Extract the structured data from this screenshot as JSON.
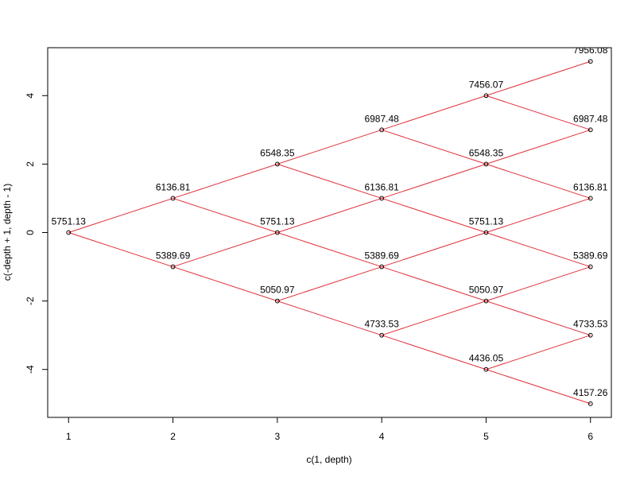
{
  "chart_data": {
    "type": "line",
    "title": "",
    "xlabel": "c(1, depth)",
    "ylabel": "c(-depth + 1, depth - 1)",
    "xlim": [
      0.8,
      6.2
    ],
    "ylim": [
      -5.4,
      5.4
    ],
    "x_ticks": [
      1,
      2,
      3,
      4,
      5,
      6
    ],
    "y_ticks": [
      -4,
      -2,
      0,
      2,
      4
    ],
    "grid": false,
    "line_color": "#e0303a",
    "nodes": [
      {
        "x": 1,
        "y": 0,
        "label": "5751.13"
      },
      {
        "x": 2,
        "y": 1,
        "label": "6136.81"
      },
      {
        "x": 2,
        "y": -1,
        "label": "5389.69"
      },
      {
        "x": 3,
        "y": 2,
        "label": "6548.35"
      },
      {
        "x": 3,
        "y": 0,
        "label": "5751.13"
      },
      {
        "x": 3,
        "y": -2,
        "label": "5050.97"
      },
      {
        "x": 4,
        "y": 3,
        "label": "6987.48"
      },
      {
        "x": 4,
        "y": 1,
        "label": "6136.81"
      },
      {
        "x": 4,
        "y": -1,
        "label": "5389.69"
      },
      {
        "x": 4,
        "y": -3,
        "label": "4733.53"
      },
      {
        "x": 5,
        "y": 4,
        "label": "7456.07"
      },
      {
        "x": 5,
        "y": 2,
        "label": "6548.35"
      },
      {
        "x": 5,
        "y": 0,
        "label": "5751.13"
      },
      {
        "x": 5,
        "y": -2,
        "label": "5050.97"
      },
      {
        "x": 5,
        "y": -4,
        "label": "4436.05"
      },
      {
        "x": 6,
        "y": 5,
        "label": "7956.08"
      },
      {
        "x": 6,
        "y": 3,
        "label": "6987.48"
      },
      {
        "x": 6,
        "y": 1,
        "label": "6136.81"
      },
      {
        "x": 6,
        "y": -1,
        "label": "5389.69"
      },
      {
        "x": 6,
        "y": -3,
        "label": "4733.53"
      },
      {
        "x": 6,
        "y": -5,
        "label": "4157.26"
      }
    ]
  }
}
